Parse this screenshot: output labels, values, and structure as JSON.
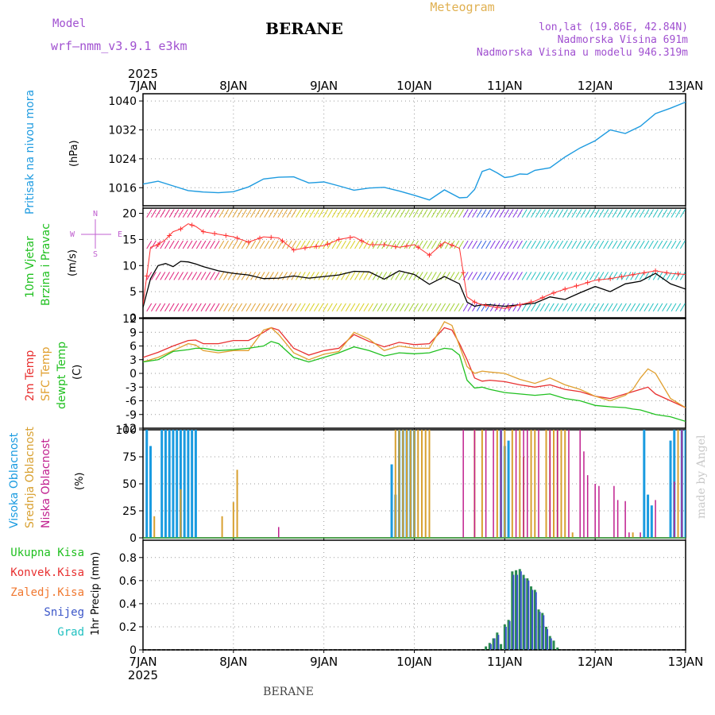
{
  "header": {
    "model_label": "Model",
    "model_name": "wrf—nmm_v3.9.1  e3km",
    "station": "BERANE",
    "product": "Meteogram",
    "lonlat": "lon,lat (19.86E, 42.84N)",
    "elevation": "Nadmorska Visina 691m",
    "model_elevation": "Nadmorska Visina u modelu 946.319m"
  },
  "axis_time": {
    "year": "2025",
    "days": [
      "7JAN",
      "8JAN",
      "9JAN",
      "10JAN",
      "11JAN",
      "12JAN",
      "13JAN"
    ]
  },
  "footer": {
    "station": "BERANE",
    "credit": "made by Angel"
  },
  "panels": {
    "pressure": {
      "title": "Pritisak na nivou mora",
      "unit": "(hPa)"
    },
    "wind": {
      "title1": "10m Vjetar",
      "title2": "Brzina i Pravac",
      "unit": "(m/s)",
      "compass_n": "N",
      "compass_s": "S",
      "compass_w": "W",
      "compass_e": "E"
    },
    "temp": {
      "t2m": "2m Temp",
      "sfc": "SFC Temp",
      "dew": "dewpt Temp",
      "unit": "(C)"
    },
    "cloud": {
      "high": "Visoka Oblacnost",
      "mid": "Srednja Oblacnost",
      "low": "Niska Oblacnost",
      "unit": "(%)"
    },
    "precip": {
      "total": "Ukupna Kisa",
      "conv": "Konvek.Kisa",
      "frz": "Zaledj.Kisa",
      "snow": "Snijeg",
      "grad": "Grad",
      "unit": "1hr Precip (mm)"
    }
  },
  "colors": {
    "pressure": "#1e9be0",
    "wind_speed": "#000000",
    "gust": "#ff3030",
    "t2m": "#e83030",
    "sfc": "#e0a030",
    "dew": "#20c020",
    "high": "#1a9be0",
    "mid": "#d8a030",
    "low": "#c0208f",
    "precip": "#2a8a50",
    "snow": "#3a55c8"
  },
  "chart_data": [
    {
      "type": "line",
      "name": "pressure",
      "title": "Pritisak na nivou mora",
      "ylabel": "(hPa)",
      "ylim": [
        1011,
        1042
      ],
      "yticks": [
        1016,
        1024,
        1032,
        1040
      ],
      "xlim": [
        0,
        144
      ],
      "x": [
        0,
        4,
        8,
        12,
        16,
        20,
        24,
        28,
        32,
        36,
        40,
        44,
        48,
        52,
        56,
        60,
        64,
        68,
        72,
        76,
        80,
        84,
        86,
        88,
        90,
        92,
        94,
        96,
        98,
        100,
        102,
        104,
        108,
        112,
        116,
        120,
        124,
        128,
        132,
        136,
        140,
        144
      ],
      "y": [
        1017,
        1017.8,
        1016.5,
        1015.2,
        1014.8,
        1014.6,
        1014.9,
        1016.2,
        1018.4,
        1018.9,
        1019,
        1017.3,
        1017.6,
        1016.5,
        1015.3,
        1015.9,
        1016.1,
        1015.1,
        1013.9,
        1012.6,
        1015.4,
        1013.2,
        1013.3,
        1015.5,
        1020.5,
        1021.2,
        1020.1,
        1018.8,
        1019.1,
        1019.8,
        1019.7,
        1020.8,
        1021.5,
        1024.5,
        1027,
        1029,
        1032,
        1031,
        1033,
        1036.5,
        1038,
        1039.7
      ]
    },
    {
      "type": "line",
      "name": "wind",
      "title": "10m Vjetar Brzina i Pravac",
      "ylabel": "(m/s)",
      "ylim": [
        0,
        21
      ],
      "yticks": [
        0,
        5,
        10,
        15,
        20
      ],
      "xlim": [
        0,
        144
      ],
      "series": [
        {
          "name": "speed",
          "x": [
            0,
            2,
            4,
            6,
            8,
            10,
            12,
            14,
            16,
            20,
            24,
            28,
            32,
            36,
            40,
            44,
            48,
            52,
            56,
            60,
            64,
            68,
            72,
            76,
            80,
            84,
            86,
            88,
            90,
            92,
            96,
            100,
            104,
            108,
            112,
            116,
            120,
            124,
            128,
            132,
            136,
            140,
            144
          ],
          "y": [
            2,
            7.5,
            10,
            10.4,
            9.8,
            10.8,
            10.7,
            10.3,
            9.8,
            9,
            8.5,
            8.2,
            7.5,
            7.6,
            8,
            7.6,
            7.9,
            8.2,
            8.9,
            8.8,
            7.4,
            9,
            8.3,
            6.4,
            7.9,
            6.5,
            3,
            2.2,
            2.5,
            2.5,
            2.2,
            2.5,
            2.8,
            4,
            3.5,
            4.8,
            6,
            5,
            6.5,
            7,
            8.5,
            6.5,
            5.5
          ]
        },
        {
          "name": "gust",
          "x": [
            0,
            2,
            4,
            6,
            8,
            10,
            12,
            14,
            16,
            20,
            24,
            28,
            32,
            36,
            40,
            44,
            48,
            52,
            56,
            60,
            64,
            68,
            72,
            76,
            80,
            84,
            86,
            88,
            90,
            92,
            96,
            100,
            104,
            108,
            112,
            116,
            120,
            124,
            128,
            132,
            136,
            140,
            144
          ],
          "y": [
            2.5,
            13.5,
            14,
            15,
            16.5,
            17,
            18,
            17.5,
            16.5,
            16,
            15.5,
            14.5,
            15.5,
            15.3,
            13,
            13.5,
            13.8,
            15,
            15.5,
            14,
            14,
            13.5,
            14,
            12,
            14.5,
            13.3,
            4,
            3,
            2.5,
            2.2,
            1.8,
            2.5,
            3.2,
            4.5,
            5.5,
            6.3,
            7.2,
            7.5,
            8,
            8.5,
            9,
            8.5,
            8.3
          ]
        }
      ]
    },
    {
      "type": "line",
      "name": "temperature",
      "title": "2m Temp / SFC Temp / dewpt Temp",
      "ylabel": "(C)",
      "ylim": [
        -12,
        12
      ],
      "yticks": [
        -12,
        -9,
        -6,
        -3,
        0,
        3,
        6,
        9,
        12
      ],
      "xlim": [
        0,
        144
      ],
      "series": [
        {
          "name": "2m Temp",
          "x": [
            0,
            4,
            8,
            12,
            14,
            16,
            20,
            24,
            28,
            32,
            34,
            36,
            40,
            44,
            48,
            52,
            56,
            60,
            64,
            68,
            72,
            76,
            80,
            82,
            84,
            86,
            88,
            90,
            92,
            96,
            100,
            104,
            108,
            112,
            116,
            120,
            124,
            128,
            130,
            132,
            134,
            136,
            140,
            144
          ],
          "y": [
            3.5,
            4.6,
            6,
            7.2,
            7.3,
            6.5,
            6.5,
            7.2,
            7.2,
            9,
            10,
            9.5,
            5.5,
            4,
            5,
            5.5,
            8.5,
            7,
            5.8,
            6.8,
            6.3,
            6.5,
            10,
            9.5,
            6.5,
            3,
            -1,
            -1.7,
            -1.5,
            -1.8,
            -2.5,
            -3,
            -2.5,
            -3.5,
            -4,
            -5,
            -5.5,
            -4.5,
            -4,
            -3.5,
            -3,
            -4.5,
            -6,
            -7.5
          ]
        },
        {
          "name": "SFC Temp",
          "x": [
            0,
            4,
            8,
            12,
            14,
            16,
            20,
            24,
            28,
            32,
            34,
            36,
            40,
            44,
            48,
            52,
            56,
            60,
            64,
            68,
            72,
            76,
            80,
            82,
            84,
            86,
            88,
            90,
            92,
            96,
            100,
            104,
            108,
            112,
            116,
            120,
            124,
            128,
            130,
            132,
            134,
            136,
            140,
            144
          ],
          "y": [
            2.5,
            3.5,
            5,
            6.5,
            6.2,
            5,
            4.5,
            5,
            5,
            9.5,
            10,
            8.5,
            4.5,
            3,
            4.2,
            4.8,
            9,
            7.5,
            5,
            6,
            5.5,
            5.5,
            11.3,
            10.5,
            6,
            1.5,
            0,
            0.5,
            0.3,
            0,
            -1.3,
            -2.2,
            -1,
            -2.5,
            -3.5,
            -5,
            -6,
            -4.8,
            -3.5,
            -1,
            1,
            0,
            -5.5,
            -7.5
          ]
        },
        {
          "name": "dewpt Temp",
          "x": [
            0,
            4,
            8,
            12,
            14,
            16,
            20,
            24,
            28,
            32,
            34,
            36,
            40,
            44,
            48,
            52,
            56,
            60,
            64,
            68,
            72,
            76,
            80,
            82,
            84,
            86,
            88,
            90,
            92,
            96,
            100,
            104,
            108,
            112,
            116,
            120,
            124,
            128,
            130,
            132,
            134,
            136,
            140,
            144
          ],
          "y": [
            2.5,
            3,
            4.8,
            5.2,
            5.5,
            5.5,
            5,
            5.2,
            5.5,
            6,
            7,
            6.5,
            3.5,
            2.5,
            3.5,
            4.5,
            5.8,
            5,
            3.8,
            4.5,
            4.3,
            4.5,
            5.5,
            5.3,
            4,
            -1.5,
            -3.2,
            -3,
            -3.5,
            -4.2,
            -4.5,
            -4.8,
            -4.5,
            -5.5,
            -6,
            -7,
            -7.3,
            -7.5,
            -7.8,
            -8,
            -8.5,
            -9,
            -9.5,
            -10.5
          ]
        }
      ]
    },
    {
      "type": "bar",
      "name": "cloud_cover",
      "title": "Visoka / Srednja / Niska Oblacnost",
      "ylabel": "(%)",
      "ylim": [
        0,
        100
      ],
      "yticks": [
        0,
        25,
        50,
        75,
        100
      ],
      "xlim": [
        0,
        144
      ],
      "series": [
        {
          "name": "Visoka Oblacnost",
          "x": [
            1,
            2,
            5,
            6,
            7,
            8,
            9,
            10,
            11,
            12,
            13,
            14,
            66,
            67,
            68,
            69,
            70,
            71,
            72,
            95,
            96,
            97,
            133,
            134,
            135,
            140,
            141,
            143,
            144
          ],
          "values": [
            100,
            85,
            100,
            100,
            100,
            100,
            100,
            100,
            100,
            100,
            100,
            100,
            68,
            40,
            100,
            100,
            100,
            100,
            100,
            100,
            85,
            90,
            100,
            40,
            30,
            90,
            100,
            100,
            100
          ]
        },
        {
          "name": "Srednja Oblacnost",
          "x": [
            3,
            10,
            21,
            24,
            25,
            67,
            68,
            69,
            70,
            71,
            72,
            73,
            74,
            75,
            76,
            88,
            90,
            94,
            96,
            98,
            100,
            101,
            103,
            104,
            107,
            108,
            109,
            110,
            111,
            112,
            114,
            130,
            142
          ],
          "values": [
            20,
            45,
            20,
            33,
            63,
            100,
            100,
            100,
            100,
            100,
            100,
            100,
            100,
            100,
            100,
            100,
            100,
            100,
            100,
            100,
            100,
            75,
            100,
            100,
            100,
            100,
            100,
            100,
            100,
            100,
            5,
            5,
            100
          ]
        },
        {
          "name": "Niska Oblacnost",
          "x": [
            36,
            85,
            88,
            91,
            93,
            95,
            99,
            101,
            102,
            105,
            108,
            110,
            113,
            116,
            117,
            118,
            120,
            121,
            125,
            126,
            128,
            129,
            132,
            136,
            141,
            143
          ],
          "values": [
            10,
            100,
            100,
            100,
            100,
            100,
            100,
            100,
            100,
            100,
            100,
            100,
            100,
            100,
            80,
            58,
            50,
            48,
            48,
            35,
            34,
            5,
            5,
            35,
            52,
            100
          ]
        }
      ]
    },
    {
      "type": "bar",
      "name": "precipitation",
      "title": "1hr Precip (mm)",
      "ylabel": "1hr Precip (mm)",
      "ylim": [
        0,
        0.95
      ],
      "yticks": [
        0,
        0.2,
        0.4,
        0.6,
        0.8
      ],
      "xlim": [
        0,
        144
      ],
      "series": [
        {
          "name": "Ukupna Kisa",
          "x": [
            91,
            92,
            93,
            94,
            95,
            96,
            97,
            98,
            99,
            100,
            101,
            102,
            103,
            104,
            105,
            106,
            107,
            108,
            109,
            110
          ],
          "values": [
            0.03,
            0.06,
            0.1,
            0.15,
            0.05,
            0.22,
            0.26,
            0.68,
            0.69,
            0.7,
            0.65,
            0.62,
            0.55,
            0.52,
            0.35,
            0.32,
            0.2,
            0.12,
            0.08,
            0.02
          ]
        },
        {
          "name": "Snijeg",
          "x": [
            92,
            93,
            94,
            96,
            97,
            98,
            99,
            100,
            101,
            102,
            103,
            104,
            105,
            106,
            107,
            108
          ],
          "values": [
            0.05,
            0.1,
            0.13,
            0.2,
            0.25,
            0.65,
            0.65,
            0.68,
            0.62,
            0.6,
            0.52,
            0.5,
            0.33,
            0.3,
            0.18,
            0.1
          ]
        }
      ]
    }
  ]
}
